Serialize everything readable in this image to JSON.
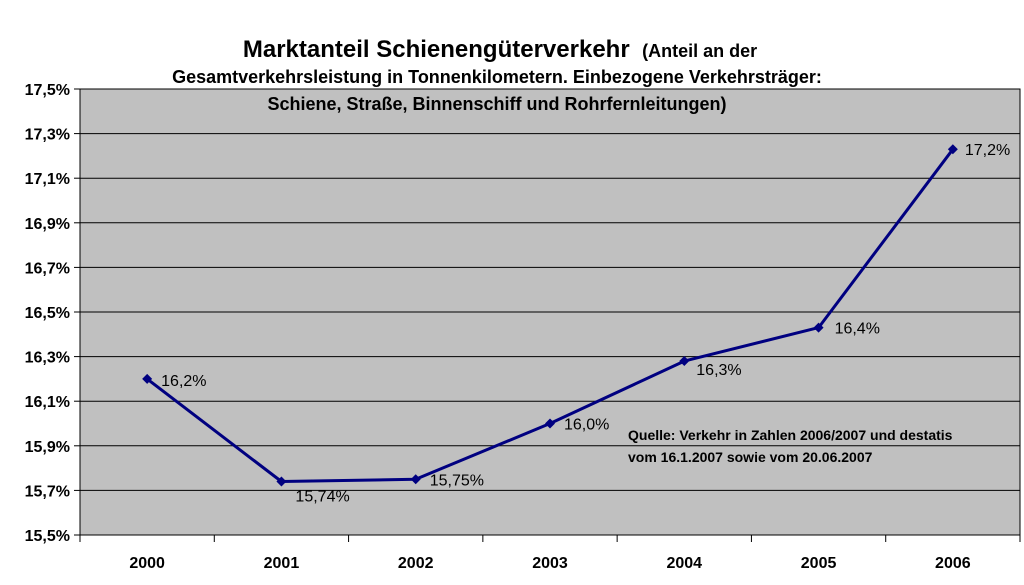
{
  "chart_data": {
    "type": "line",
    "title": "Marktanteil Schienengüterverkehr",
    "subtitle_lines": [
      "(Anteil an der",
      "Gesamtverkehrsleistung in Tonnenkilometern. Einbezogene Verkehrsträger:",
      "Schiene, Straße, Binnenschiff und Rohrfernleitungen)"
    ],
    "categories": [
      "2000",
      "2001",
      "2002",
      "2003",
      "2004",
      "2005",
      "2006"
    ],
    "series": [
      {
        "values": [
          16.2,
          15.74,
          15.75,
          16.0,
          16.28,
          16.43,
          17.23
        ],
        "data_labels": [
          "16,2%",
          "15,74%",
          "15,75%",
          "16,0%",
          "16,3%",
          "16,4%",
          "17,2%"
        ],
        "color": "#000080"
      }
    ],
    "ylim": [
      15.5,
      17.5
    ],
    "yticks": [
      15.5,
      15.7,
      15.9,
      16.1,
      16.3,
      16.5,
      16.7,
      16.9,
      17.1,
      17.3,
      17.5
    ],
    "ytick_labels": [
      "15,5%",
      "15,7%",
      "15,9%",
      "16,1%",
      "16,3%",
      "16,5%",
      "16,7%",
      "16,9%",
      "17,1%",
      "17,3%",
      "17,5%"
    ],
    "grid": true,
    "plot_background": "#c0c0c0",
    "annotation_lines": [
      "Quelle: Verkehr in Zahlen 2006/2007  und destatis",
      "vom 16.1.2007 sowie vom 20.06.2007"
    ]
  }
}
